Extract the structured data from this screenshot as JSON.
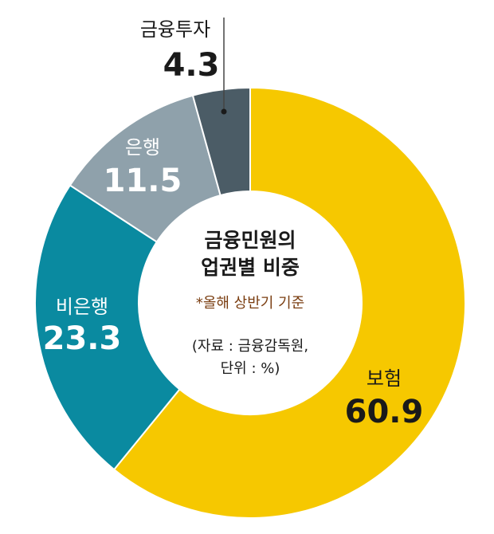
{
  "chart_data": {
    "type": "pie",
    "center_title_line1": "금융민원의",
    "center_title_line2": "업권별 비중",
    "note": "*올해 상반기 기준",
    "source_line1": "(자료 : 금융감독원,",
    "source_line2": "단위 : %)",
    "slices": [
      {
        "name": "보험",
        "value_text": "60.9",
        "value": 60.9,
        "color": "#f6c800",
        "text_color": "#1a1a1a"
      },
      {
        "name": "비은행",
        "value_text": "23.3",
        "value": 23.3,
        "color": "#0a8aa0",
        "text_color": "#ffffff"
      },
      {
        "name": "은행",
        "value_text": "11.5",
        "value": 11.5,
        "color": "#8fa1ab",
        "text_color": "#ffffff"
      },
      {
        "name": "금융투자",
        "value_text": "4.3",
        "value": 4.3,
        "color": "#4b5c66",
        "text_color": "#1a1a1a"
      }
    ]
  }
}
